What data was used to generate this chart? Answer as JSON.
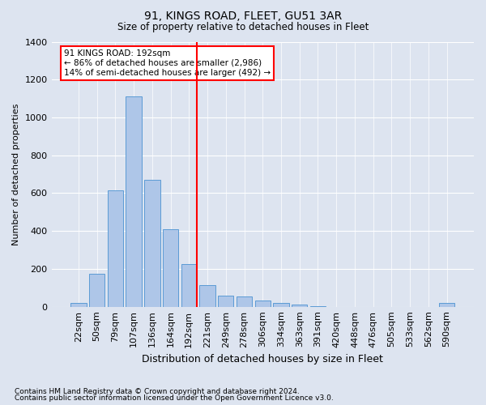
{
  "title1": "91, KINGS ROAD, FLEET, GU51 3AR",
  "title2": "Size of property relative to detached houses in Fleet",
  "xlabel": "Distribution of detached houses by size in Fleet",
  "ylabel": "Number of detached properties",
  "bar_labels": [
    "22sqm",
    "50sqm",
    "79sqm",
    "107sqm",
    "136sqm",
    "164sqm",
    "192sqm",
    "221sqm",
    "249sqm",
    "278sqm",
    "306sqm",
    "334sqm",
    "363sqm",
    "391sqm",
    "420sqm",
    "448sqm",
    "476sqm",
    "505sqm",
    "533sqm",
    "562sqm",
    "590sqm"
  ],
  "bar_values": [
    20,
    175,
    615,
    1110,
    670,
    410,
    225,
    115,
    60,
    55,
    35,
    20,
    10,
    5,
    0,
    0,
    0,
    0,
    0,
    0,
    20
  ],
  "bar_color": "#aec6e8",
  "bar_edgecolor": "#5b9bd5",
  "highlight_index": 6,
  "ylim": [
    0,
    1400
  ],
  "yticks": [
    0,
    200,
    400,
    600,
    800,
    1000,
    1200,
    1400
  ],
  "annotation_text": "91 KINGS ROAD: 192sqm\n← 86% of detached houses are smaller (2,986)\n14% of semi-detached houses are larger (492) →",
  "footer1": "Contains HM Land Registry data © Crown copyright and database right 2024.",
  "footer2": "Contains public sector information licensed under the Open Government Licence v3.0.",
  "bg_color": "#dde4f0",
  "plot_bg_color": "#dde4f0"
}
